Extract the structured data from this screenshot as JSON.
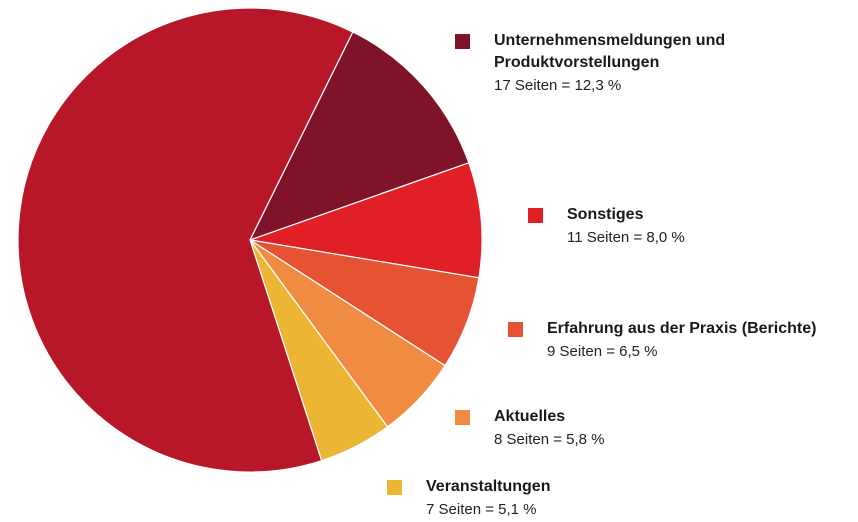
{
  "chart_data": {
    "type": "pie",
    "categories": [
      "Unternehmensmeldungen und Produktvorstellungen",
      "Sonstiges",
      "Erfahrung aus der Praxis (Berichte)",
      "Aktuelles",
      "Veranstaltungen",
      null
    ],
    "values": [
      12.3,
      8.0,
      6.5,
      5.8,
      5.1,
      62.3
    ],
    "value_labels": [
      "17 Seiten = 12,3 %",
      "11 Seiten = 8,0 %",
      "9 Seiten = 6,5 %",
      "8 Seiten = 5,8 %",
      "7 Seiten = 5,1 %",
      null
    ],
    "colors": [
      "#7f1328",
      "#e11f26",
      "#e65332",
      "#f08c42",
      "#ecb634",
      "#b81729"
    ]
  }
}
